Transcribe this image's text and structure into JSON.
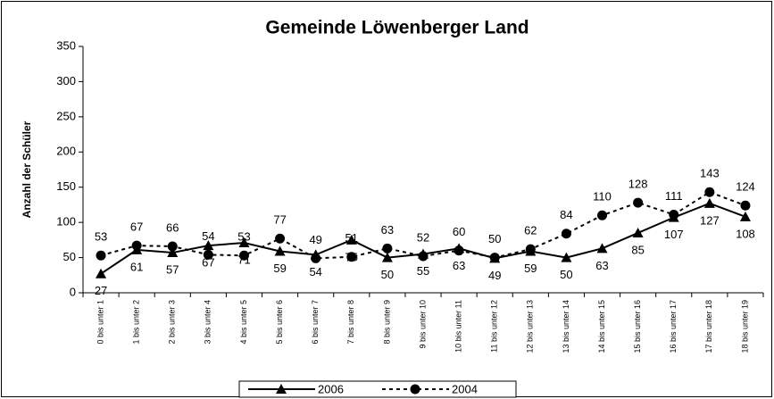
{
  "chart_data": {
    "type": "line",
    "title": "Gemeinde Löwenberger Land",
    "y_label": "Anzahl der Schüler",
    "categories": [
      "0 bis unter 1",
      "1 bis unter 2",
      "2 bis unter 3",
      "3 bis unter 4",
      "4 bis unter 5",
      "5 bis unter 6",
      "6 bis unter 7",
      "7 bis unter 8",
      "8 bis unter 9",
      "9 bis unter 10",
      "10 bis unter 11",
      "11 bis unter 12",
      "12 bis unter 13",
      "13 bis unter 14",
      "14 bis unter 15",
      "15 bis unter 16",
      "16 bis unter 17",
      "17 bis unter 18",
      "18 bis unter 19"
    ],
    "series": [
      {
        "name": "2006",
        "color": "#000000",
        "dash": "solid",
        "marker": "triangle",
        "label_position": "below",
        "values": [
          27,
          61,
          57,
          67,
          71,
          59,
          54,
          75,
          50,
          55,
          63,
          49,
          59,
          50,
          63,
          85,
          107,
          127,
          108
        ]
      },
      {
        "name": "2004",
        "color": "#000000",
        "dash": "dashed",
        "marker": "circle",
        "label_position": "above",
        "values": [
          53,
          67,
          66,
          54,
          53,
          77,
          49,
          51,
          63,
          52,
          60,
          50,
          62,
          84,
          110,
          128,
          111,
          143,
          124
        ]
      }
    ],
    "ylim": [
      0,
      350
    ],
    "yticks": [
      0,
      50,
      100,
      150,
      200,
      250,
      300,
      350
    ],
    "grid": false,
    "legend": "bottom"
  }
}
